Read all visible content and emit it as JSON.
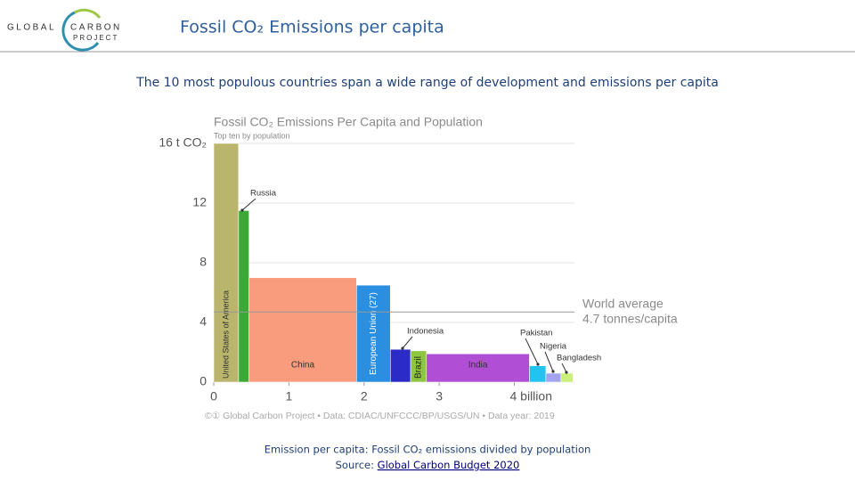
{
  "header": {
    "logo": {
      "left": "GLOBAL",
      "right": "CARBON",
      "bottom": "PROJECT"
    },
    "title": "Fossil CO₂ Emissions per capita"
  },
  "subtitle": "The 10 most populous countries span a wide range of development and emissions per capita",
  "chart_data": {
    "type": "bar",
    "title": "Fossil CO₂ Emissions Per Capita and Population",
    "subtitle": "Top ten by population",
    "categories": [
      "United States of America",
      "Russia",
      "China",
      "European Union (27)",
      "Indonesia",
      "Brazil",
      "India",
      "Pakistan",
      "Nigeria",
      "Bangladesh"
    ],
    "widths": [
      0.33,
      0.14,
      1.43,
      0.45,
      0.27,
      0.21,
      1.37,
      0.22,
      0.2,
      0.16
    ],
    "values": [
      16.0,
      11.5,
      7.0,
      6.5,
      2.2,
      2.1,
      1.9,
      1.1,
      0.6,
      0.6
    ],
    "colors": [
      "#b9b56c",
      "#3aa936",
      "#f99b7d",
      "#2a8fe0",
      "#2b2bc8",
      "#8dc63f",
      "#b04fd6",
      "#22c3f0",
      "#a3a3f2",
      "#cdf07a"
    ],
    "xlim": [
      0,
      4.8
    ],
    "ylim": [
      0,
      16
    ],
    "xticks": [
      0,
      1,
      2,
      3,
      {
        "value": 4,
        "label": "4 billion"
      }
    ],
    "yticks": [
      0,
      4,
      8,
      12,
      {
        "value": 16,
        "label": "16 t CO₂"
      }
    ],
    "grid": true,
    "reference": {
      "value": 4.7,
      "label_1": "World average",
      "label_2": "4.7 tonnes/capita"
    },
    "credit": "©① Global Carbon Project  •  Data: CDIAC/UNFCCC/BP/USGS/UN  •  Data year: 2019"
  },
  "footer": {
    "line_1": "Emission per capita: Fossil CO₂ emissions divided by population",
    "source_prefix": "Source: ",
    "source_link": "Global Carbon Budget 2020"
  }
}
